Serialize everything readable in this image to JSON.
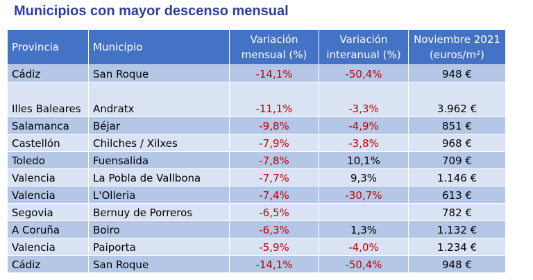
{
  "title": "Municipios con mayor descenso mensual",
  "headers": {
    "provincia": "Provincia",
    "municipio": "Municipio",
    "var_mensual_1": "Variación",
    "var_mensual_2": "mensual (%)",
    "var_interanual_1": "Variación",
    "var_interanual_2": "interanual (%)",
    "precio_1": "Noviembre 2021",
    "precio_2": "(euros/m²)"
  },
  "rows": [
    {
      "provincia": "Cádiz",
      "municipio": "San Roque",
      "mensual": "-14,1%",
      "interanual": "-50,4%",
      "precio": "948 €"
    },
    {
      "provincia": "Illes Baleares",
      "municipio": "Andratx",
      "mensual": "-11,1%",
      "interanual": "-3,3%",
      "precio": "3.962 €"
    },
    {
      "provincia": "Salamanca",
      "municipio": "Béjar",
      "mensual": "-9,8%",
      "interanual": "-4,9%",
      "precio": "851 €"
    },
    {
      "provincia": "Castellón",
      "municipio": "Chilches / Xilxes",
      "mensual": "-7,9%",
      "interanual": "-3,8%",
      "precio": "968 €"
    },
    {
      "provincia": "Toledo",
      "municipio": "Fuensalida",
      "mensual": "-7,8%",
      "interanual": "10,1%",
      "precio": "709 €"
    },
    {
      "provincia": "Valencia",
      "municipio": "La Pobla de Vallbona",
      "mensual": "-7,7%",
      "interanual": "9,3%",
      "precio": "1.146 €"
    },
    {
      "provincia": "Valencia",
      "municipio": "L'Olleria",
      "mensual": "-7,4%",
      "interanual": "-30,7%",
      "precio": "613 €"
    },
    {
      "provincia": "Segovia",
      "municipio": "Bernuy de Porreros",
      "mensual": "-6,5%",
      "interanual": "",
      "precio": "782 €"
    },
    {
      "provincia": "A Coruña",
      "municipio": "Boiro",
      "mensual": "-6,3%",
      "interanual": "1,3%",
      "precio": "1.132 €"
    },
    {
      "provincia": "Valencia",
      "municipio": "Paiporta",
      "mensual": "-5,9%",
      "interanual": "-4,0%",
      "precio": "1.234 €"
    },
    {
      "provincia": "Cádiz",
      "municipio": "San Roque",
      "mensual": "-14,1%",
      "interanual": "-50,4%",
      "precio": "948 €"
    }
  ],
  "colors": {
    "header_bg": "#4472c4",
    "row_odd": "#b4c7e7",
    "row_even": "#dae3f3",
    "negative": "#c00000",
    "title": "#2e3f9a"
  }
}
